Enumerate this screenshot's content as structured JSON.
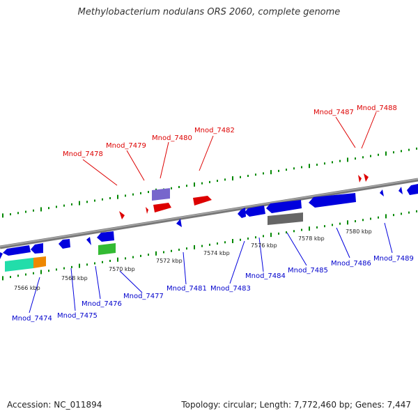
{
  "title": "Methylobacterium nodulans ORS 2060, complete genome",
  "footer": {
    "accession": "Accession: NC_011894",
    "summary": "Topology: circular; Length: 7,772,460 bp; Genes: 7,447"
  },
  "colors": {
    "forward_gene": "#dd0000",
    "reverse_gene": "#0000dd",
    "backbone": "#888888",
    "tick": "#008800",
    "grey_feature": "#666666",
    "purple_feature": "#7766cc",
    "green_feature": "#33bb33",
    "aqua_feature": "#22ddaa",
    "orange_feature": "#ee8800"
  },
  "scale_labels": [
    "7566 kbp",
    "7568 kbp",
    "7570 kbp",
    "7572 kbp",
    "7574 kbp",
    "7576 kbp",
    "7578 kbp",
    "7580 kbp"
  ],
  "forward_labels": [
    "Mnod_7478",
    "Mnod_7479",
    "Mnod_7480",
    "Mnod_7482",
    "Mnod_7487",
    "Mnod_7488"
  ],
  "reverse_labels": [
    "Mnod_7474",
    "Mnod_7475",
    "Mnod_7476",
    "Mnod_7477",
    "Mnod_7481",
    "Mnod_7483",
    "Mnod_7484",
    "Mnod_7485",
    "Mnod_7486",
    "Mnod_7489"
  ]
}
